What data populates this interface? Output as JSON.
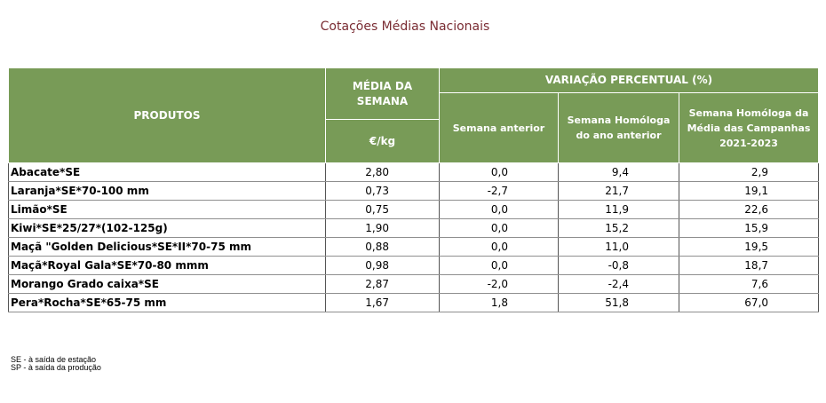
{
  "title": "Cotações Médias Nacionais",
  "table": {
    "header": {
      "produtos": "PRODUTOS",
      "media_semana": "MÉDIA DA SEMANA",
      "unit": "€/kg",
      "variacao": "VARIAÇÃO PERCENTUAL (%)",
      "semana_anterior": "Semana anterior",
      "homologa_ano_anterior": "Semana Homóloga do ano anterior",
      "homologa_media_campanhas": "Semana Homóloga da Média das Campanhas 2021-2023"
    },
    "rows": [
      {
        "produto": "Abacate*SE",
        "media": "2,80",
        "anterior": "0,0",
        "ano_anterior": "9,4",
        "campanhas": "2,9"
      },
      {
        "produto": "Laranja*SE*70-100 mm",
        "media": "0,73",
        "anterior": "-2,7",
        "ano_anterior": "21,7",
        "campanhas": "19,1"
      },
      {
        "produto": "Limão*SE",
        "media": "0,75",
        "anterior": "0,0",
        "ano_anterior": "11,9",
        "campanhas": "22,6"
      },
      {
        "produto": "Kiwi*SE*25/27*(102-125g)",
        "media": "1,90",
        "anterior": "0,0",
        "ano_anterior": "15,2",
        "campanhas": "15,9"
      },
      {
        "produto": "Maçã \"Golden Delicious*SE*II*70-75 mm",
        "media": "0,88",
        "anterior": "0,0",
        "ano_anterior": "11,0",
        "campanhas": "19,5"
      },
      {
        "produto": "Maçã*Royal Gala*SE*70-80 mmm",
        "media": "0,98",
        "anterior": "0,0",
        "ano_anterior": "-0,8",
        "campanhas": "18,7"
      },
      {
        "produto": "Morango Grado caixa*SE",
        "media": "2,87",
        "anterior": "-2,0",
        "ano_anterior": "-2,4",
        "campanhas": "7,6"
      },
      {
        "produto": "Pera*Rocha*SE*65-75 mm",
        "media": "1,67",
        "anterior": "1,8",
        "ano_anterior": "51,8",
        "campanhas": "67,0"
      }
    ]
  },
  "footnotes": {
    "se": "SE - à saída de estação",
    "sp": "SP - à saída da produção"
  },
  "colors": {
    "header_bg": "#789b57",
    "title": "#7a2c33"
  }
}
